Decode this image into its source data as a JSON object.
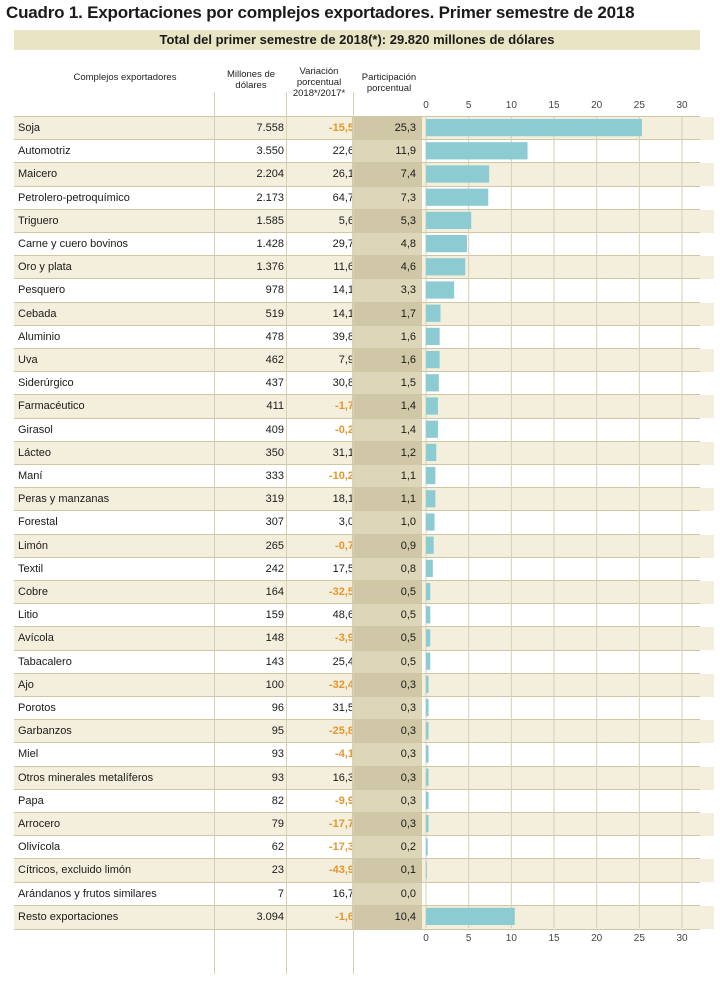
{
  "title": "Cuadro 1. Exportaciones por complejos exportadores. Primer semestre de 2018",
  "subtitle": "Total del primer semestre de 2018(*): 29.820 millones de dólares",
  "headers": {
    "complejos": "Complejos exportadores",
    "millones": "Millones de dólares",
    "variacion": "Variación porcentual 2018*/2017*",
    "participacion": "Participación porcentual"
  },
  "colors": {
    "bar": "#8ccbd2",
    "negative": "#e3962c",
    "band": "#f3efdc",
    "participation": "#ddd6b8"
  },
  "chart_data": {
    "type": "bar",
    "orientation": "horizontal",
    "xlim": [
      0,
      30
    ],
    "xticks": [
      "0",
      "5",
      "10",
      "15",
      "20",
      "25",
      "30"
    ],
    "grid": true,
    "categories": [
      "Soja",
      "Automotriz",
      "Maicero",
      "Petrolero-petroquímico",
      "Triguero",
      "Carne y cuero bovinos",
      "Oro y plata",
      "Pesquero",
      "Cebada",
      "Aluminio",
      "Uva",
      "Siderúrgico",
      "Farmacéutico",
      "Girasol",
      "Lácteo",
      "Maní",
      "Peras y manzanas",
      "Forestal",
      "Limón",
      "Textil",
      "Cobre",
      "Litio",
      "Avícola",
      "Tabacalero",
      "Ajo",
      "Porotos",
      "Garbanzos",
      "Miel",
      "Otros minerales metalíferos",
      "Papa",
      "Arrocero",
      "Olivícola",
      "Cítricos, excluido limón",
      "Arándanos y frutos similares",
      "Resto exportaciones"
    ],
    "millones": [
      "7.558",
      "3.550",
      "2.204",
      "2.173",
      "1.585",
      "1.428",
      "1.376",
      "978",
      "519",
      "478",
      "462",
      "437",
      "411",
      "409",
      "350",
      "333",
      "319",
      "307",
      "265",
      "242",
      "164",
      "159",
      "148",
      "143",
      "100",
      "96",
      "95",
      "93",
      "93",
      "82",
      "79",
      "62",
      "23",
      "7",
      "3.094"
    ],
    "variacion": [
      "-15,5",
      "22,6",
      "26,1",
      "64,7",
      "5,6",
      "29,7",
      "11,6",
      "14,1",
      "14,1",
      "39,8",
      "7,9",
      "30,8",
      "-1,7",
      "-0,2",
      "31,1",
      "-10,2",
      "18,1",
      "3,0",
      "-0,7",
      "17,5",
      "-32,5",
      "48,6",
      "-3,9",
      "25,4",
      "-32,4",
      "31,5",
      "-25,8",
      "-4,1",
      "16,3",
      "-9,9",
      "-17,7",
      "-17,3",
      "-43,9",
      "16,7",
      "-1,6"
    ],
    "participacion": [
      "25,3",
      "11,9",
      "7,4",
      "7,3",
      "5,3",
      "4,8",
      "4,6",
      "3,3",
      "1,7",
      "1,6",
      "1,6",
      "1,5",
      "1,4",
      "1,4",
      "1,2",
      "1,1",
      "1,1",
      "1,0",
      "0,9",
      "0,8",
      "0,5",
      "0,5",
      "0,5",
      "0,5",
      "0,3",
      "0,3",
      "0,3",
      "0,3",
      "0,3",
      "0,3",
      "0,3",
      "0,2",
      "0,1",
      "0,0",
      "10,4"
    ],
    "values": [
      25.3,
      11.9,
      7.4,
      7.3,
      5.3,
      4.8,
      4.6,
      3.3,
      1.7,
      1.6,
      1.6,
      1.5,
      1.4,
      1.4,
      1.2,
      1.1,
      1.1,
      1.0,
      0.9,
      0.8,
      0.5,
      0.5,
      0.5,
      0.5,
      0.3,
      0.3,
      0.3,
      0.3,
      0.3,
      0.3,
      0.3,
      0.2,
      0.1,
      0.0,
      10.4
    ]
  }
}
